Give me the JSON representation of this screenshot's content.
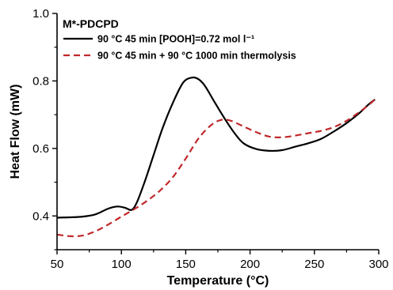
{
  "chart_data": {
    "type": "line",
    "annotation": "M*-PDCPD",
    "xlabel": "Temperature (°C)",
    "ylabel": "Heat Flow (mW)",
    "xlim": [
      50,
      300
    ],
    "ylim": [
      0.3,
      1.0
    ],
    "xticks": [
      "50",
      "100",
      "150",
      "200",
      "250",
      "300"
    ],
    "yticks": [
      "0.4",
      "0.6",
      "0.8",
      "1.0"
    ],
    "xtick_values": [
      50,
      100,
      150,
      200,
      250,
      300
    ],
    "ytick_values": [
      0.4,
      0.6,
      0.8,
      1.0
    ],
    "grid": false,
    "legend_position": "top-left",
    "series": [
      {
        "name": "90 °C 45 min [POOH]=0.72 mol l⁻¹",
        "color": "#000000",
        "style": "solid",
        "points": [
          [
            50,
            0.395
          ],
          [
            60,
            0.396
          ],
          [
            70,
            0.398
          ],
          [
            80,
            0.405
          ],
          [
            90,
            0.422
          ],
          [
            97,
            0.428
          ],
          [
            103,
            0.424
          ],
          [
            108,
            0.418
          ],
          [
            112,
            0.44
          ],
          [
            118,
            0.5
          ],
          [
            125,
            0.58
          ],
          [
            132,
            0.66
          ],
          [
            140,
            0.735
          ],
          [
            148,
            0.795
          ],
          [
            155,
            0.81
          ],
          [
            160,
            0.805
          ],
          [
            165,
            0.785
          ],
          [
            172,
            0.74
          ],
          [
            180,
            0.69
          ],
          [
            188,
            0.645
          ],
          [
            195,
            0.615
          ],
          [
            205,
            0.598
          ],
          [
            215,
            0.593
          ],
          [
            225,
            0.595
          ],
          [
            235,
            0.605
          ],
          [
            245,
            0.615
          ],
          [
            255,
            0.628
          ],
          [
            265,
            0.65
          ],
          [
            275,
            0.675
          ],
          [
            285,
            0.705
          ],
          [
            292,
            0.73
          ],
          [
            297,
            0.745
          ]
        ]
      },
      {
        "name": "90 °C 45 min + 90 °C 1000 min thermolysis",
        "color": "#c0282a",
        "style": "dashed",
        "points": [
          [
            50,
            0.345
          ],
          [
            60,
            0.34
          ],
          [
            70,
            0.342
          ],
          [
            80,
            0.355
          ],
          [
            90,
            0.375
          ],
          [
            100,
            0.398
          ],
          [
            110,
            0.42
          ],
          [
            120,
            0.445
          ],
          [
            130,
            0.475
          ],
          [
            140,
            0.515
          ],
          [
            150,
            0.57
          ],
          [
            160,
            0.63
          ],
          [
            170,
            0.67
          ],
          [
            178,
            0.685
          ],
          [
            185,
            0.682
          ],
          [
            195,
            0.665
          ],
          [
            205,
            0.648
          ],
          [
            215,
            0.635
          ],
          [
            225,
            0.633
          ],
          [
            235,
            0.638
          ],
          [
            245,
            0.645
          ],
          [
            255,
            0.652
          ],
          [
            265,
            0.663
          ],
          [
            275,
            0.682
          ],
          [
            285,
            0.708
          ],
          [
            292,
            0.728
          ],
          [
            297,
            0.745
          ]
        ]
      }
    ]
  }
}
